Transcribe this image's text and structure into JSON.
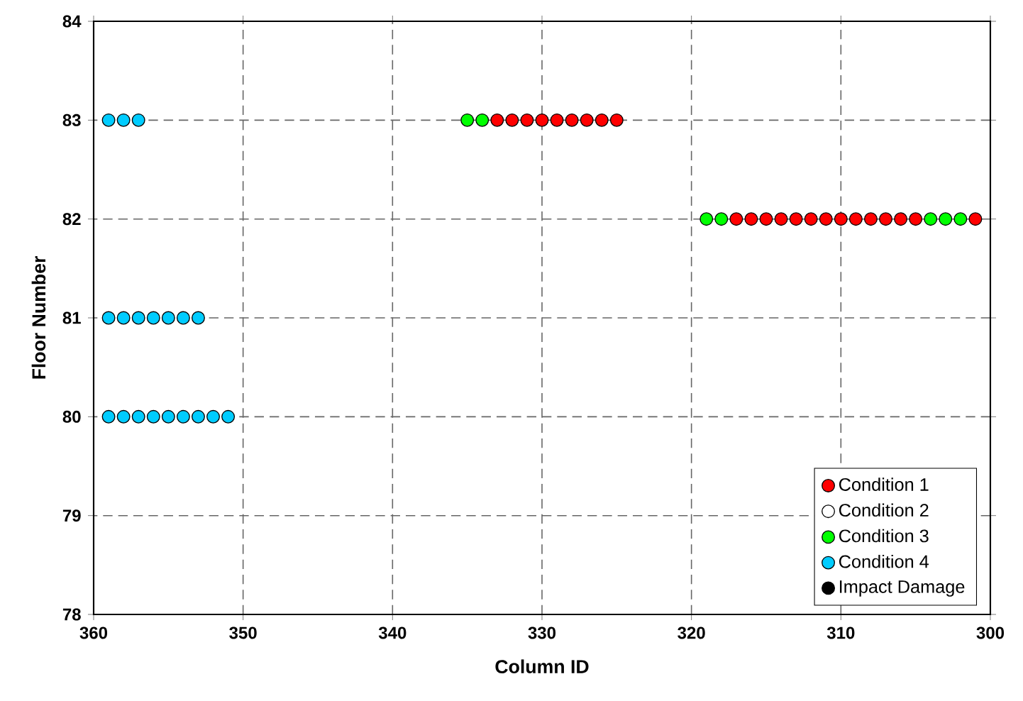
{
  "chart_data": {
    "type": "scatter",
    "xlabel": "Column ID",
    "ylabel": "Floor Number",
    "xlim": [
      360,
      300
    ],
    "ylim": [
      78,
      84
    ],
    "xticks": [
      360,
      350,
      340,
      330,
      320,
      310,
      300
    ],
    "yticks": [
      78,
      79,
      80,
      81,
      82,
      83,
      84
    ],
    "grid": true,
    "legend": "bottom right",
    "marker": "circle",
    "series": [
      {
        "name": "Condition 1",
        "color": "#ff0000",
        "x": [
          333,
          332,
          331,
          330,
          329,
          328,
          327,
          326,
          325,
          317,
          316,
          315,
          314,
          313,
          312,
          311,
          310,
          309,
          308,
          307,
          306,
          305,
          301
        ],
        "values": [
          83,
          83,
          83,
          83,
          83,
          83,
          83,
          83,
          83,
          82,
          82,
          82,
          82,
          82,
          82,
          82,
          82,
          82,
          82,
          82,
          82,
          82,
          82
        ]
      },
      {
        "name": "Condition 2",
        "color": "#ffffff"
      },
      {
        "name": "Condition 3",
        "color": "#00ff00",
        "x": [
          335,
          334,
          319,
          318,
          304,
          303,
          302
        ],
        "values": [
          83,
          83,
          82,
          82,
          82,
          82,
          82
        ]
      },
      {
        "name": "Condition 4",
        "color": "#00ccff",
        "x": [
          359,
          358,
          357,
          359,
          358,
          357,
          356,
          355,
          354,
          353,
          359,
          358,
          357,
          356,
          355,
          354,
          353,
          352,
          351
        ],
        "values": [
          83,
          83,
          83,
          81,
          81,
          81,
          81,
          81,
          81,
          81,
          80,
          80,
          80,
          80,
          80,
          80,
          80,
          80,
          80
        ]
      },
      {
        "name": "Impact Damage",
        "color": "#000000"
      }
    ]
  }
}
